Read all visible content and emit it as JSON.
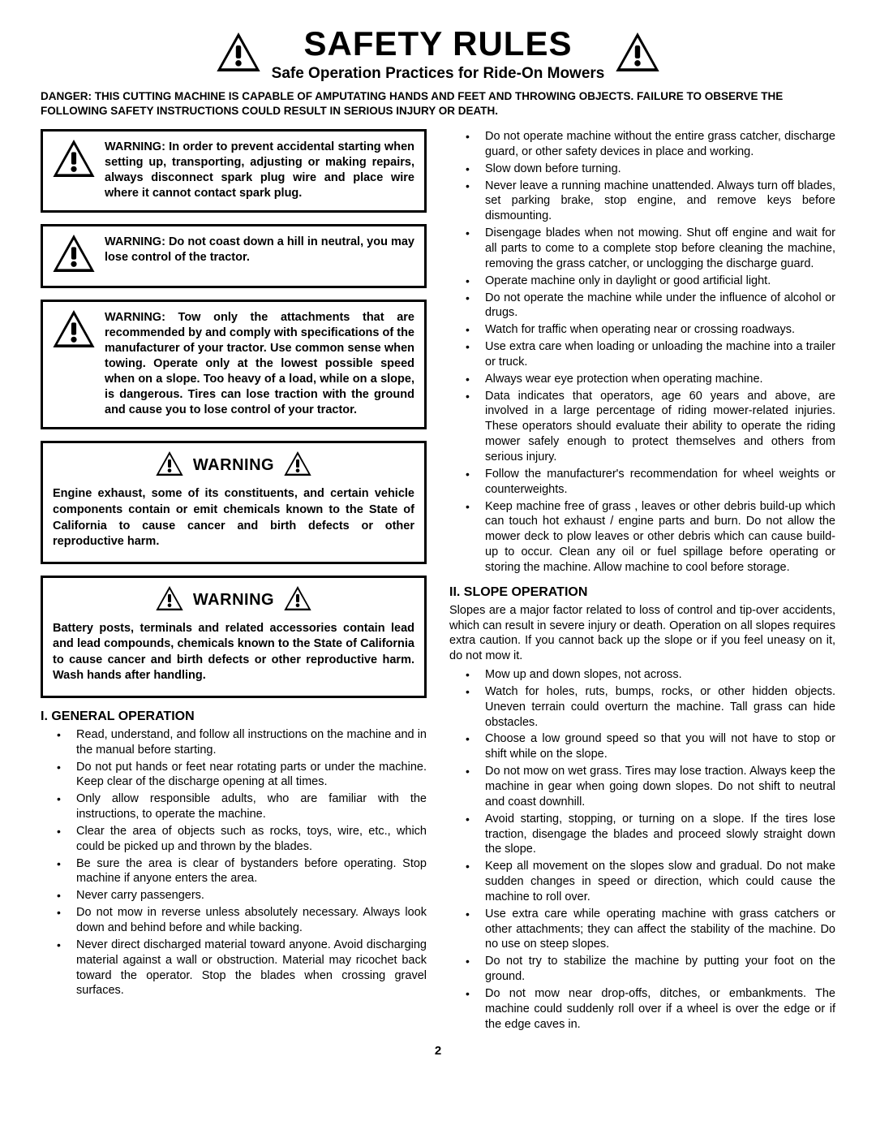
{
  "header": {
    "title": "SAFETY RULES",
    "subtitle": "Safe Operation Practices for Ride-On Mowers"
  },
  "danger": "DANGER:  THIS CUTTING MACHINE IS CAPABLE OF AMPUTATING HANDS AND FEET AND THROWING OBJECTS.  FAILURE TO OBSERVE THE FOLLOWING SAFETY INSTRUCTIONS COULD RESULT IN SERIOUS INJURY OR DEATH.",
  "box1": "WARNING:  In order to prevent accidental starting when setting up, transporting, adjusting or making repairs, always disconnect spark plug wire and place wire where it cannot contact spark plug.",
  "box2": "WARNING:  Do not coast down a hill in neutral, you may lose control of the tractor.",
  "box3": "WARNING:  Tow only the attachments that are recommended by and comply with specifications of the manufacturer of your tractor. Use common sense when towing. Operate only at the lowest possible speed when on a slope.  Too heavy of a load, while on a slope, is dangerous.  Tires can lose traction with the ground and cause you to lose control of your tractor.",
  "warnLabel": "WARNING",
  "box4": "Engine exhaust, some of its constituents, and certain vehicle components contain or emit chemicals known to the State of California to cause cancer and birth defects or other reproductive harm.",
  "box5": "Battery posts, terminals and related accessories contain lead and lead compounds, chemicals known to the State of California to cause cancer and birth defects or other reproductive harm. Wash hands after handling.",
  "section1": {
    "heading": "I. GENERAL OPERATION",
    "items": [
      "Read, understand, and follow all instructions on the machine and in the manual before starting.",
      "Do not put hands or feet near rotating parts or under the machine. Keep clear of the discharge opening at all times.",
      "Only allow responsible adults, who are familiar with the instructions, to operate the machine.",
      "Clear the area of objects such as rocks, toys, wire, etc., which could be picked up and thrown by the blades.",
      "Be sure the area is clear of bystanders before operating.  Stop machine if anyone enters the area.",
      "Never carry passengers.",
      "Do not mow in reverse unless absolutely necessary. Always look down and behind before and while backing.",
      "Never direct discharged material toward anyone. Avoid discharging material against a wall or obstruction. Material may ricochet back toward the operator. Stop the blades when crossing gravel surfaces."
    ]
  },
  "section1b": {
    "items": [
      "Do not operate machine without the entire grass catcher, discharge guard, or other safety devices in place and working.",
      "Slow down before turning.",
      "Never leave a running machine unattended.  Always turn off blades, set parking brake, stop engine, and remove keys before dismounting.",
      "Disengage blades when not mowing. Shut off engine and wait for all parts to come to a complete stop before cleaning the machine, removing the grass catcher, or unclogging the discharge guard.",
      "Operate machine only in daylight or good artificial light.",
      "Do not operate the machine while under the influence of alcohol or drugs.",
      "Watch for traffic when operating near or crossing roadways.",
      "Use extra care when loading or unloading the machine into a trailer or truck.",
      "Always wear eye protection when operating machine.",
      "Data indicates that operators, age 60 years and above, are involved in a large percentage of riding mower-related injuries.  These operators should evaluate their ability to operate the riding mower safely enough to protect themselves and others from serious injury.",
      "Follow the manufacturer's recommendation for wheel weights or counterweights.",
      "Keep machine free of grass , leaves or other debris build-up which can touch hot exhaust / engine parts and burn. Do not allow the mower deck to plow leaves or other debris which can cause build-up to occur. Clean any oil or fuel spillage before operating or storing the machine. Allow machine to cool before storage."
    ]
  },
  "section2": {
    "heading": "II. SLOPE OPERATION",
    "intro": "Slopes are a major factor related to loss of control and tip-over accidents, which can result in severe injury or death.  Operation on all slopes requires extra caution.  If you cannot back up the slope or if you feel uneasy on it, do not mow it.",
    "items": [
      "Mow up and down slopes, not across.",
      "Watch for holes, ruts, bumps, rocks, or other hidden objects.  Uneven terrain could overturn the machine.  Tall grass can hide obstacles.",
      "Choose a low ground speed so that you will not have to stop or shift while on the slope.",
      "Do not mow on wet grass. Tires may lose traction.  Always keep the machine in gear when going down slopes. Do not shift to neutral and coast downhill.",
      "Avoid starting, stopping, or turning on a slope.  If the tires lose traction,  disengage the blades and proceed slowly straight down the slope.",
      "Keep all movement on the slopes slow and gradual.  Do not make sudden changes in speed or direction, which could cause the machine to roll over.",
      "Use extra care while operating machine with grass catchers or other attachments; they can affect the stability of the machine. Do no use on steep slopes.",
      "Do not  try to stabilize the machine by putting your foot on the ground.",
      "Do not mow near drop-offs, ditches, or embankments. The machine could suddenly roll over if a wheel is over the edge or if the edge caves in."
    ]
  },
  "pageNumber": "2",
  "colors": {
    "fg": "#000000",
    "bg": "#ffffff"
  }
}
